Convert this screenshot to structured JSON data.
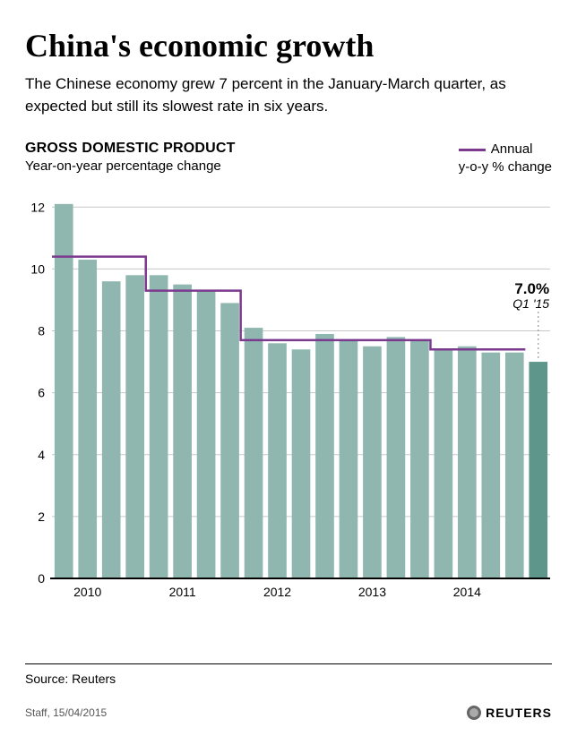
{
  "title": "China's economic growth",
  "subtitle": "The Chinese economy grew 7 percent in the January-March quarter, as expected but still its slowest rate in six years.",
  "chart": {
    "type": "bar-and-step-line",
    "title": "GROSS DOMESTIC PRODUCT",
    "subtitle": "Year-on-year percentage change",
    "legend": {
      "line1": "Annual",
      "line2": "y-o-y % change"
    },
    "ylim": [
      0,
      12.5
    ],
    "yticks": [
      0,
      2,
      4,
      6,
      8,
      10,
      12
    ],
    "x_year_labels": [
      "2010",
      "2011",
      "2012",
      "2013",
      "2014"
    ],
    "bars": [
      12.1,
      10.3,
      9.6,
      9.8,
      9.8,
      9.5,
      9.3,
      8.9,
      8.1,
      7.6,
      7.4,
      7.9,
      7.7,
      7.5,
      7.8,
      7.7,
      7.4,
      7.5,
      7.3,
      7.3,
      7.0
    ],
    "highlight_last": true,
    "annual_steps": [
      {
        "from_bar": 0,
        "to_bar": 3,
        "value": 10.4
      },
      {
        "from_bar": 4,
        "to_bar": 7,
        "value": 9.3
      },
      {
        "from_bar": 8,
        "to_bar": 11,
        "value": 7.7
      },
      {
        "from_bar": 12,
        "to_bar": 15,
        "value": 7.7
      },
      {
        "from_bar": 16,
        "to_bar": 19,
        "value": 7.4
      }
    ],
    "callout": {
      "value": "7.0%",
      "sub": "Q1 '15"
    },
    "colors": {
      "background": "#ffffff",
      "bar": "#8fb7b0",
      "bar_highlight": "#5e968c",
      "annual_line": "#7c3a8f",
      "gridline": "#c7c7c7",
      "axis": "#000000",
      "baseline": "#000000",
      "callout_dash": "#888888"
    },
    "sizes": {
      "bar_gap_ratio": 0.22,
      "annual_line_width": 2.5,
      "tick_fontsize": 14,
      "title_fontsize": 16,
      "subtitle_fontsize": 15
    }
  },
  "source": "Source: Reuters",
  "byline": "Staff, 15/04/2015",
  "brand": "REUTERS"
}
